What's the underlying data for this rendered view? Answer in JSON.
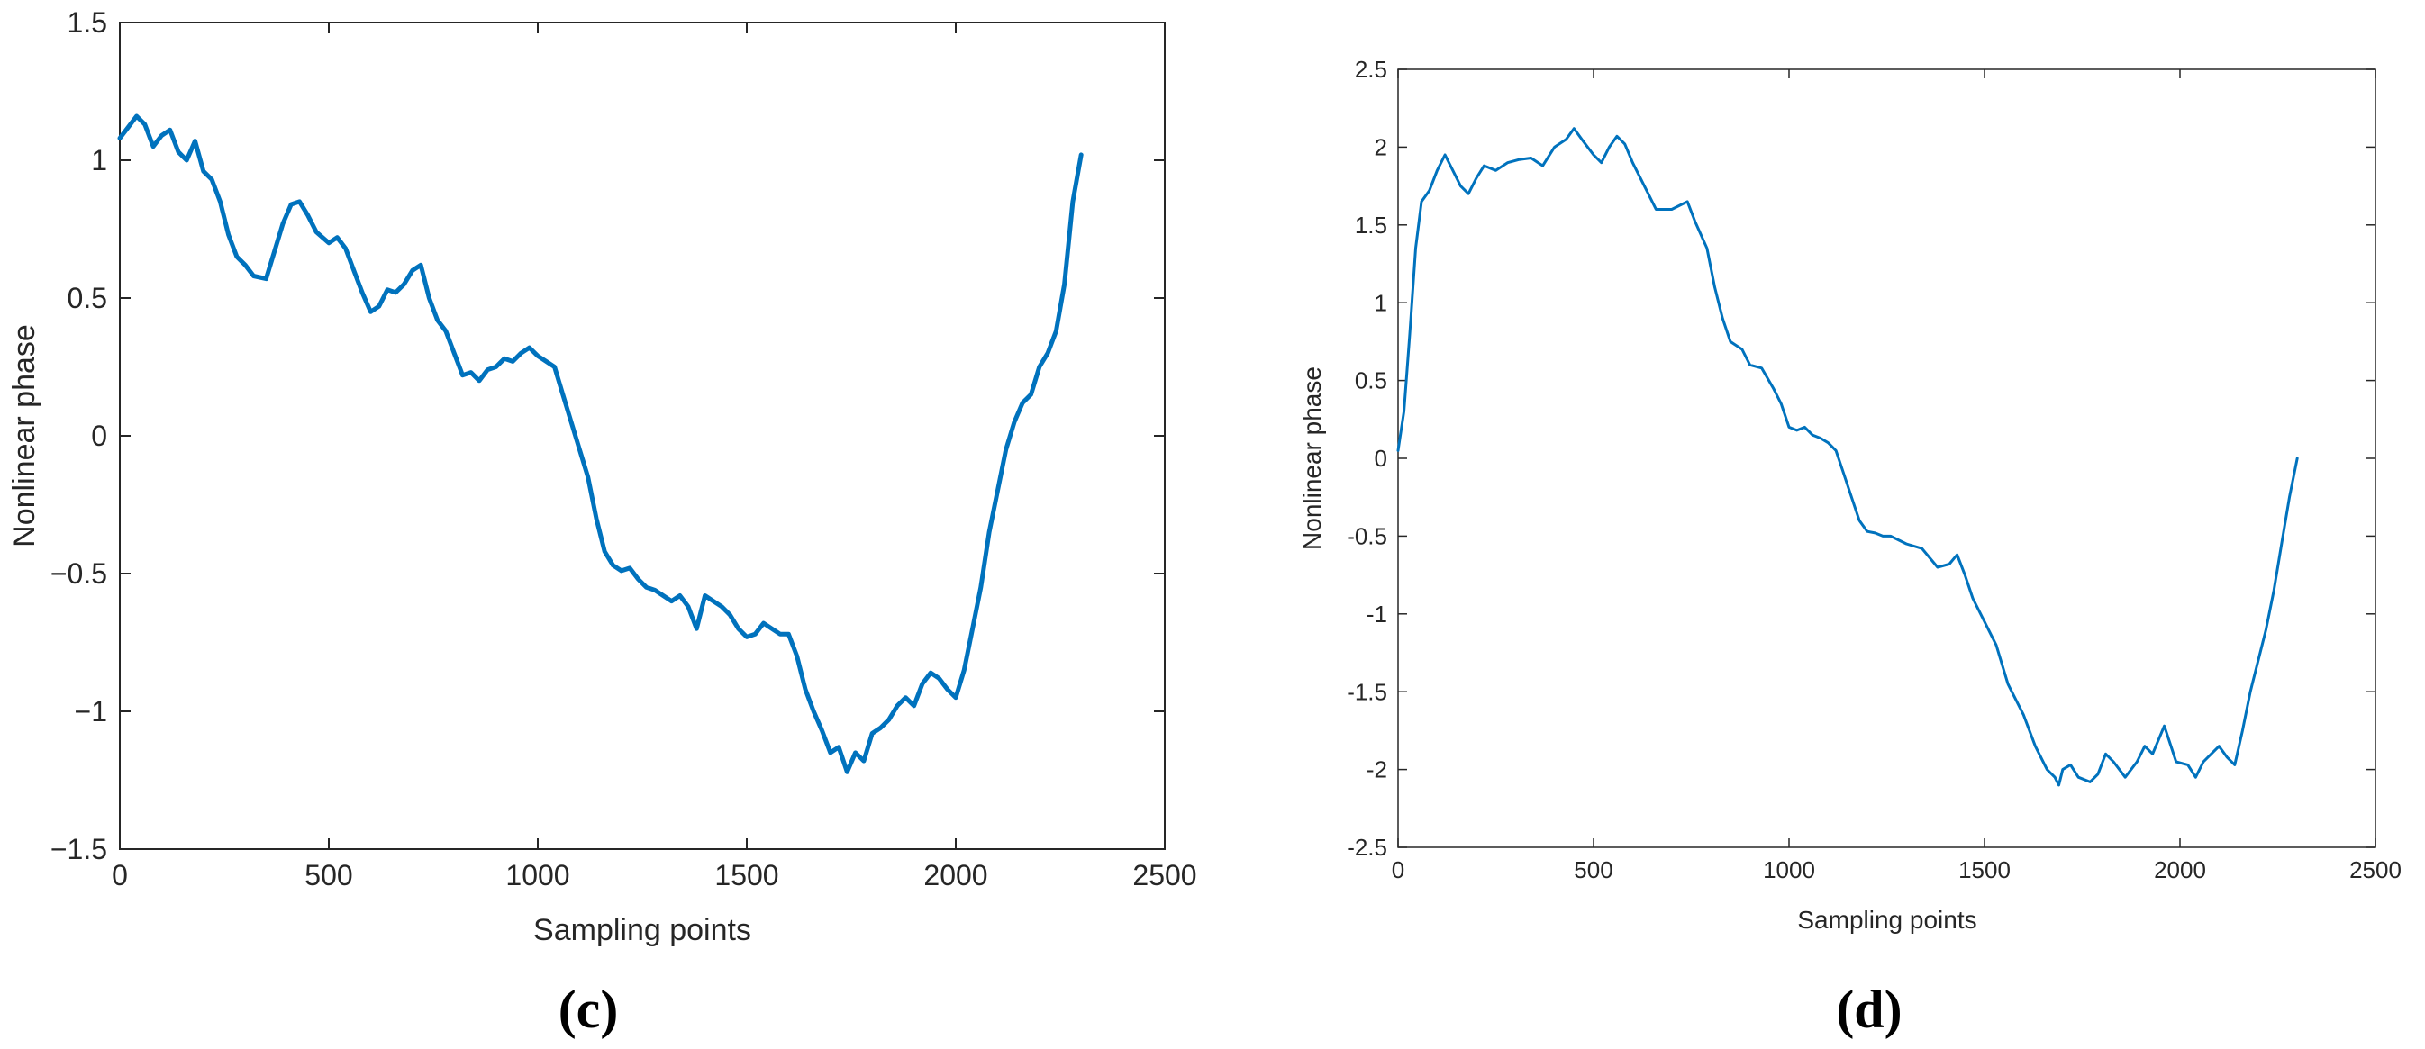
{
  "chart_data": [
    {
      "type": "line",
      "panel_label": "(c)",
      "xlabel": "Sampling points",
      "ylabel": "Nonlinear phase",
      "xlim": [
        0,
        2500
      ],
      "ylim": [
        -1.5,
        1.5
      ],
      "xticks": [
        0,
        500,
        1000,
        1500,
        2000,
        2500
      ],
      "xtick_labels": [
        "0",
        "500",
        "1000",
        "1500",
        "2000",
        "2500"
      ],
      "yticks": [
        -1.5,
        -1,
        -0.5,
        0,
        0.5,
        1,
        1.5
      ],
      "ytick_labels": [
        "−1.5",
        "−1",
        "−0.5",
        "0",
        "0.5",
        "1",
        "1.5"
      ],
      "grid": false,
      "line_color": "#0072BD",
      "series": [
        {
          "x": [
            0,
            20,
            40,
            60,
            80,
            100,
            120,
            140,
            160,
            180,
            200,
            220,
            240,
            260,
            280,
            300,
            320,
            350,
            370,
            390,
            410,
            430,
            450,
            470,
            500,
            520,
            540,
            560,
            580,
            600,
            620,
            640,
            660,
            680,
            700,
            720,
            740,
            760,
            780,
            800,
            820,
            840,
            860,
            880,
            900,
            920,
            940,
            960,
            980,
            1000,
            1020,
            1040,
            1060,
            1080,
            1100,
            1120,
            1140,
            1160,
            1180,
            1200,
            1220,
            1240,
            1260,
            1280,
            1300,
            1320,
            1340,
            1360,
            1380,
            1400,
            1420,
            1440,
            1460,
            1480,
            1500,
            1520,
            1540,
            1560,
            1580,
            1600,
            1620,
            1640,
            1660,
            1680,
            1700,
            1720,
            1740,
            1760,
            1780,
            1800,
            1820,
            1840,
            1860,
            1880,
            1900,
            1920,
            1940,
            1960,
            1980,
            2000,
            2020,
            2040,
            2060,
            2080,
            2100,
            2120,
            2140,
            2160,
            2180,
            2200,
            2220,
            2240,
            2260,
            2280,
            2300
          ],
          "y": [
            1.08,
            1.12,
            1.16,
            1.13,
            1.05,
            1.09,
            1.11,
            1.03,
            1.0,
            1.07,
            0.96,
            0.93,
            0.85,
            0.73,
            0.65,
            0.62,
            0.58,
            0.57,
            0.67,
            0.77,
            0.84,
            0.85,
            0.8,
            0.74,
            0.7,
            0.72,
            0.68,
            0.6,
            0.52,
            0.45,
            0.47,
            0.53,
            0.52,
            0.55,
            0.6,
            0.62,
            0.5,
            0.42,
            0.38,
            0.3,
            0.22,
            0.23,
            0.2,
            0.24,
            0.25,
            0.28,
            0.27,
            0.3,
            0.32,
            0.29,
            0.27,
            0.25,
            0.15,
            0.05,
            -0.05,
            -0.15,
            -0.3,
            -0.42,
            -0.47,
            -0.49,
            -0.48,
            -0.52,
            -0.55,
            -0.56,
            -0.58,
            -0.6,
            -0.58,
            -0.62,
            -0.7,
            -0.58,
            -0.6,
            -0.62,
            -0.65,
            -0.7,
            -0.73,
            -0.72,
            -0.68,
            -0.7,
            -0.72,
            -0.72,
            -0.8,
            -0.92,
            -1.0,
            -1.07,
            -1.15,
            -1.13,
            -1.22,
            -1.15,
            -1.18,
            -1.08,
            -1.06,
            -1.03,
            -0.98,
            -0.95,
            -0.98,
            -0.9,
            -0.86,
            -0.88,
            -0.92,
            -0.95,
            -0.85,
            -0.7,
            -0.55,
            -0.35,
            -0.2,
            -0.05,
            0.05,
            0.12,
            0.15,
            0.25,
            0.3,
            0.38,
            0.55,
            0.85,
            1.02
          ]
        }
      ]
    },
    {
      "type": "line",
      "panel_label": "(d)",
      "xlabel": "Sampling points",
      "ylabel": "Nonlinear phase",
      "xlim": [
        0,
        2500
      ],
      "ylim": [
        -2.5,
        2.5
      ],
      "xticks": [
        0,
        500,
        1000,
        1500,
        2000,
        2500
      ],
      "xtick_labels": [
        "0",
        "500",
        "1000",
        "1500",
        "2000",
        "2500"
      ],
      "yticks": [
        -2.5,
        -2,
        -1.5,
        -1,
        -0.5,
        0,
        0.5,
        1,
        1.5,
        2,
        2.5
      ],
      "ytick_labels": [
        "-2.5",
        "-2",
        "-1.5",
        "-1",
        "-0.5",
        "0",
        "0.5",
        "1",
        "1.5",
        "2",
        "2.5"
      ],
      "grid": false,
      "line_color": "#0072BD",
      "series": [
        {
          "x": [
            0,
            15,
            30,
            45,
            60,
            80,
            100,
            120,
            140,
            160,
            180,
            200,
            220,
            250,
            280,
            310,
            340,
            370,
            400,
            430,
            450,
            470,
            500,
            520,
            540,
            560,
            580,
            600,
            630,
            660,
            700,
            740,
            760,
            790,
            810,
            830,
            850,
            880,
            900,
            930,
            960,
            980,
            1000,
            1020,
            1040,
            1060,
            1080,
            1100,
            1120,
            1140,
            1160,
            1180,
            1200,
            1220,
            1240,
            1260,
            1300,
            1340,
            1380,
            1410,
            1430,
            1450,
            1470,
            1500,
            1530,
            1560,
            1600,
            1630,
            1660,
            1680,
            1690,
            1700,
            1720,
            1740,
            1770,
            1790,
            1810,
            1830,
            1860,
            1890,
            1910,
            1930,
            1960,
            1990,
            2020,
            2040,
            2060,
            2080,
            2100,
            2120,
            2140,
            2160,
            2180,
            2200,
            2220,
            2240,
            2260,
            2280,
            2300
          ],
          "y": [
            0.05,
            0.3,
            0.8,
            1.35,
            1.65,
            1.72,
            1.85,
            1.95,
            1.85,
            1.75,
            1.7,
            1.8,
            1.88,
            1.85,
            1.9,
            1.92,
            1.93,
            1.88,
            2.0,
            2.05,
            2.12,
            2.05,
            1.95,
            1.9,
            2.0,
            2.07,
            2.02,
            1.9,
            1.75,
            1.6,
            1.6,
            1.65,
            1.52,
            1.35,
            1.1,
            0.9,
            0.75,
            0.7,
            0.6,
            0.58,
            0.45,
            0.35,
            0.2,
            0.18,
            0.2,
            0.15,
            0.13,
            0.1,
            0.05,
            -0.1,
            -0.25,
            -0.4,
            -0.47,
            -0.48,
            -0.5,
            -0.5,
            -0.55,
            -0.58,
            -0.7,
            -0.68,
            -0.62,
            -0.75,
            -0.9,
            -1.05,
            -1.2,
            -1.45,
            -1.65,
            -1.85,
            -2.0,
            -2.05,
            -2.1,
            -2.0,
            -1.97,
            -2.05,
            -2.08,
            -2.03,
            -1.9,
            -1.95,
            -2.05,
            -1.95,
            -1.85,
            -1.9,
            -1.72,
            -1.95,
            -1.97,
            -2.05,
            -1.95,
            -1.9,
            -1.85,
            -1.92,
            -1.97,
            -1.75,
            -1.5,
            -1.3,
            -1.1,
            -0.85,
            -0.55,
            -0.25,
            0.0
          ]
        }
      ]
    }
  ]
}
